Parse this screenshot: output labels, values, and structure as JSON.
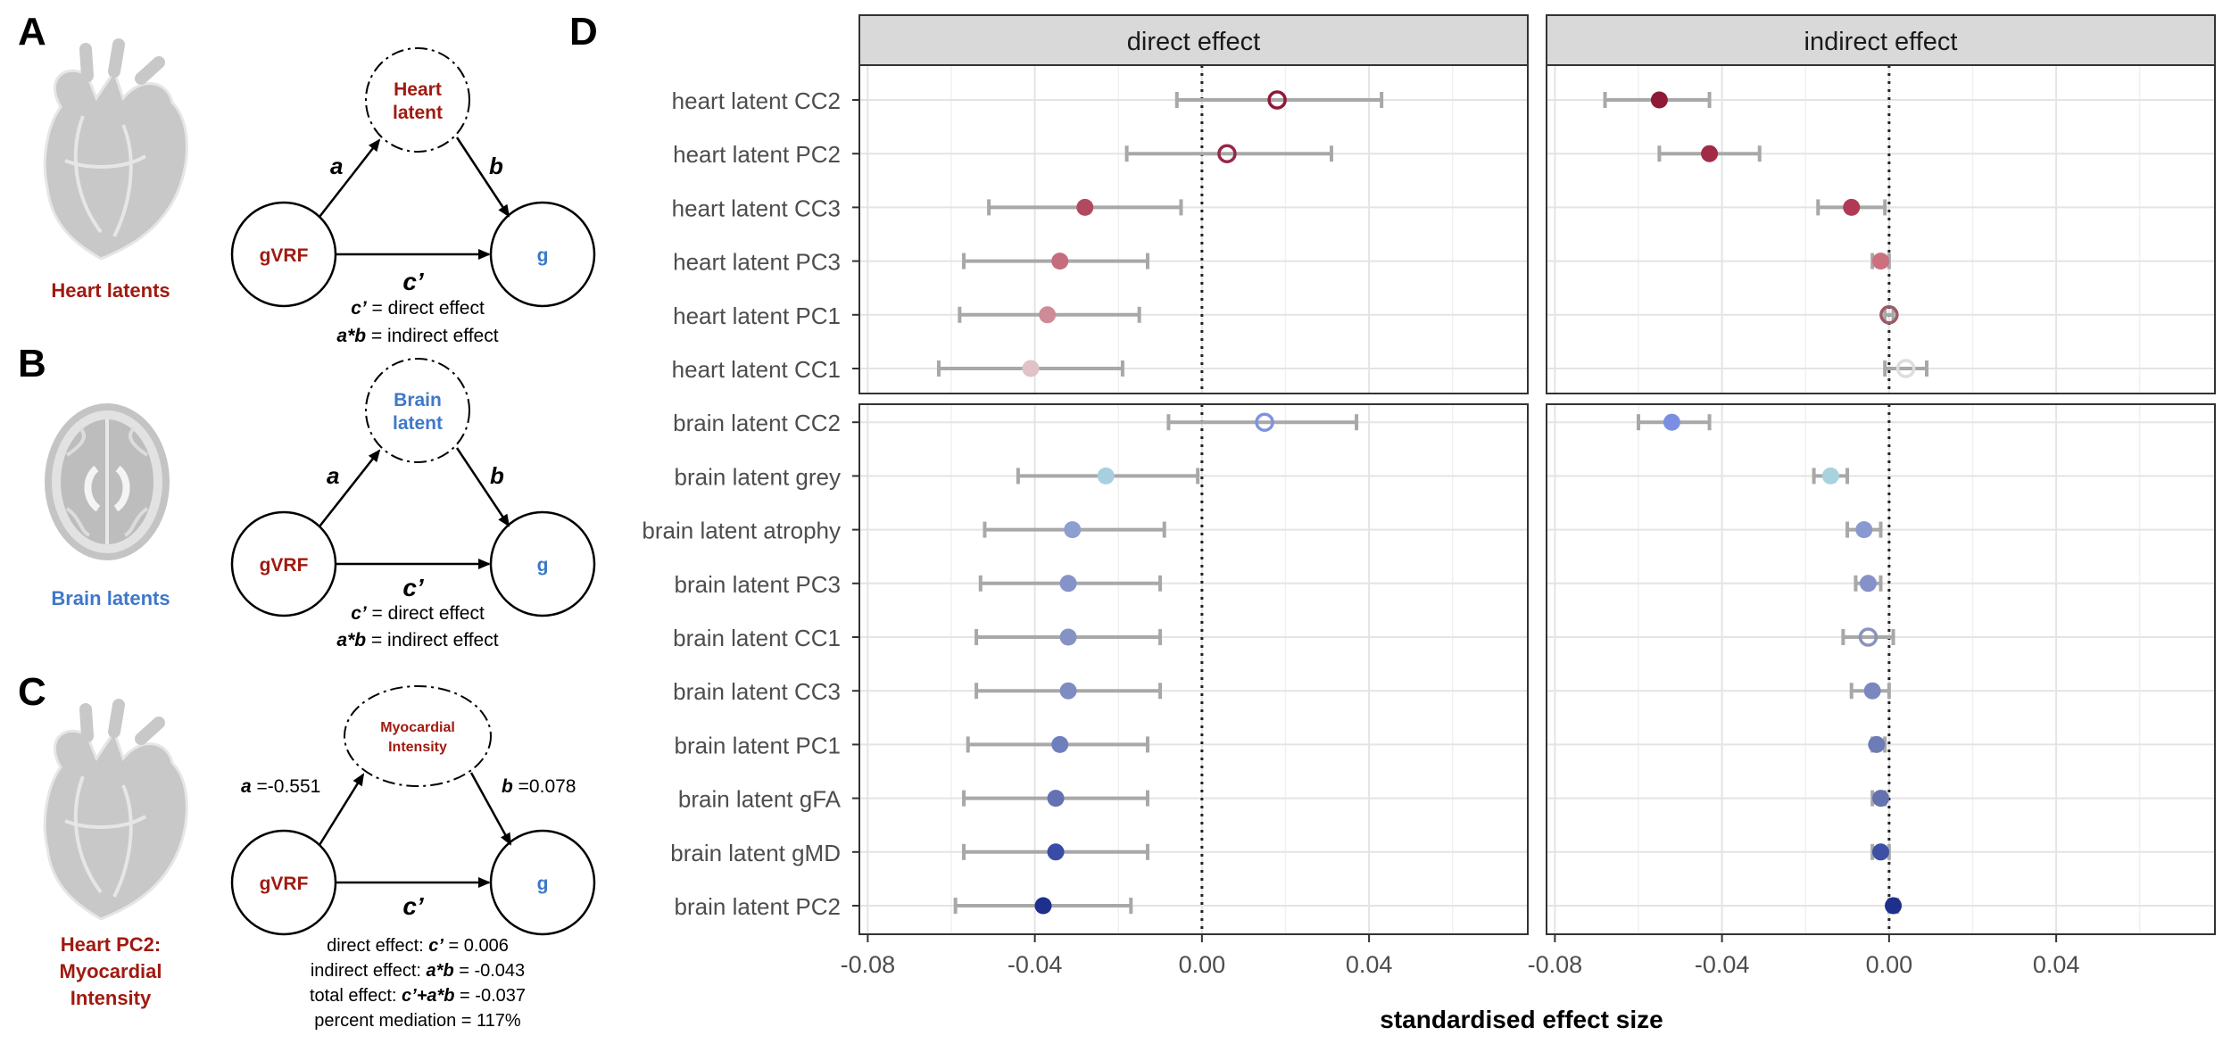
{
  "panels": {
    "A": {
      "letter": "A",
      "caption": "Heart latents",
      "mediator": [
        "Heart",
        "latent"
      ],
      "x_node": "gVRF",
      "y_node": "g",
      "path_a": "a",
      "path_b": "b",
      "path_c": "c’",
      "note1_sym": "c’",
      "note1_text": " = direct effect",
      "note2_sym": "a*b",
      "note2_text": " = indirect effect"
    },
    "B": {
      "letter": "B",
      "caption": "Brain latents",
      "mediator": [
        "Brain",
        "latent"
      ],
      "x_node": "gVRF",
      "y_node": "g",
      "path_a": "a",
      "path_b": "b",
      "path_c": "c’",
      "note1_sym": "c’",
      "note1_text": " = direct effect",
      "note2_sym": "a*b",
      "note2_text": " = indirect effect"
    },
    "C": {
      "letter": "C",
      "caption": [
        "Heart PC2:",
        "Myocardial",
        "Intensity"
      ],
      "mediator": [
        "Myocardial",
        "Intensity"
      ],
      "x_node": "gVRF",
      "y_node": "g",
      "path_a_sym": "a",
      "path_a_val": " =-0.551",
      "path_b_sym": "b",
      "path_b_val": " =0.078",
      "path_c": "c’",
      "lines": [
        {
          "pre": "direct effect: ",
          "sym": "c’",
          "post": " = 0.006"
        },
        {
          "pre": "indirect effect: ",
          "sym": "a*b",
          "post": " = -0.043"
        },
        {
          "pre": "total effect: ",
          "sym": "c’+a*b",
          "post": " = -0.037"
        },
        {
          "pre": "percent mediation = 117%",
          "sym": "",
          "post": ""
        }
      ]
    },
    "D": {
      "letter": "D"
    }
  },
  "colors": {
    "heart_text": "#a01a10",
    "brain_text": "#3f78c8",
    "node_blue": "#3a78c8",
    "strip_bg": "#d9d9d9",
    "errorbar": "#a8a8a8"
  },
  "chart_data": {
    "type": "scatter",
    "subtype": "dot-and-whisker forest plot",
    "facets": [
      "direct effect",
      "indirect effect"
    ],
    "xlabel": "standardised effect size",
    "xlim": [
      -0.082,
      0.078
    ],
    "xticks": [
      -0.08,
      -0.04,
      0.0,
      0.04
    ],
    "xtick_labels": [
      "-0.08",
      "-0.04",
      "0.00",
      "0.04"
    ],
    "reference_line": 0,
    "grid": true,
    "rows": [
      {
        "label": "heart latent CC2",
        "group": "heart",
        "direct": {
          "est": 0.018,
          "lo": -0.006,
          "hi": 0.043,
          "sig": false,
          "color": "#8e1a38"
        },
        "indirect": {
          "est": -0.055,
          "lo": -0.068,
          "hi": -0.043,
          "sig": true,
          "color": "#8e1a38"
        }
      },
      {
        "label": "heart latent PC2",
        "group": "heart",
        "direct": {
          "est": 0.006,
          "lo": -0.018,
          "hi": 0.031,
          "sig": false,
          "color": "#96284a"
        },
        "indirect": {
          "est": -0.043,
          "lo": -0.055,
          "hi": -0.031,
          "sig": true,
          "color": "#a32a45"
        }
      },
      {
        "label": "heart latent CC3",
        "group": "heart",
        "direct": {
          "est": -0.028,
          "lo": -0.051,
          "hi": -0.005,
          "sig": true,
          "color": "#b14a60"
        },
        "indirect": {
          "est": -0.009,
          "lo": -0.017,
          "hi": -0.001,
          "sig": true,
          "color": "#b03a55"
        }
      },
      {
        "label": "heart latent PC3",
        "group": "heart",
        "direct": {
          "est": -0.034,
          "lo": -0.057,
          "hi": -0.013,
          "sig": true,
          "color": "#c56c7e"
        },
        "indirect": {
          "est": -0.002,
          "lo": -0.004,
          "hi": 0.0,
          "sig": true,
          "color": "#cc7080"
        }
      },
      {
        "label": "heart latent PC1",
        "group": "heart",
        "direct": {
          "est": -0.037,
          "lo": -0.058,
          "hi": -0.015,
          "sig": true,
          "color": "#cf8a97"
        },
        "indirect": {
          "est": 0.0,
          "lo": -0.001,
          "hi": 0.001,
          "sig": false,
          "color": "#9e5a66"
        }
      },
      {
        "label": "heart latent CC1",
        "group": "heart",
        "direct": {
          "est": -0.041,
          "lo": -0.063,
          "hi": -0.019,
          "sig": true,
          "color": "#e0c2c8"
        },
        "indirect": {
          "est": 0.004,
          "lo": -0.001,
          "hi": 0.009,
          "sig": false,
          "color": "#dddddd"
        }
      },
      {
        "label": "brain latent CC2",
        "group": "brain",
        "direct": {
          "est": 0.015,
          "lo": -0.008,
          "hi": 0.037,
          "sig": false,
          "color": "#7f93e0"
        },
        "indirect": {
          "est": -0.052,
          "lo": -0.06,
          "hi": -0.043,
          "sig": true,
          "color": "#7b8fe2"
        }
      },
      {
        "label": "brain latent grey",
        "group": "brain",
        "direct": {
          "est": -0.023,
          "lo": -0.044,
          "hi": -0.001,
          "sig": true,
          "color": "#a8cfe0"
        },
        "indirect": {
          "est": -0.014,
          "lo": -0.018,
          "hi": -0.01,
          "sig": true,
          "color": "#a8d2de"
        }
      },
      {
        "label": "brain latent atrophy",
        "group": "brain",
        "direct": {
          "est": -0.031,
          "lo": -0.052,
          "hi": -0.009,
          "sig": true,
          "color": "#8e9ed0"
        },
        "indirect": {
          "est": -0.006,
          "lo": -0.01,
          "hi": -0.002,
          "sig": true,
          "color": "#8a9ad0"
        }
      },
      {
        "label": "brain latent PC3",
        "group": "brain",
        "direct": {
          "est": -0.032,
          "lo": -0.053,
          "hi": -0.01,
          "sig": true,
          "color": "#8593c8"
        },
        "indirect": {
          "est": -0.005,
          "lo": -0.008,
          "hi": -0.002,
          "sig": true,
          "color": "#8591c8"
        }
      },
      {
        "label": "brain latent CC1",
        "group": "brain",
        "direct": {
          "est": -0.032,
          "lo": -0.054,
          "hi": -0.01,
          "sig": true,
          "color": "#8592c4"
        },
        "indirect": {
          "est": -0.005,
          "lo": -0.011,
          "hi": 0.001,
          "sig": false,
          "color": "#8b93b8"
        }
      },
      {
        "label": "brain latent CC3",
        "group": "brain",
        "direct": {
          "est": -0.032,
          "lo": -0.054,
          "hi": -0.01,
          "sig": true,
          "color": "#7e8cc2"
        },
        "indirect": {
          "est": -0.004,
          "lo": -0.009,
          "hi": 0.0,
          "sig": true,
          "color": "#7b88be"
        }
      },
      {
        "label": "brain latent PC1",
        "group": "brain",
        "direct": {
          "est": -0.034,
          "lo": -0.056,
          "hi": -0.013,
          "sig": true,
          "color": "#6f7fbe"
        },
        "indirect": {
          "est": -0.003,
          "lo": -0.004,
          "hi": -0.001,
          "sig": true,
          "color": "#6d7cb6"
        }
      },
      {
        "label": "brain latent gFA",
        "group": "brain",
        "direct": {
          "est": -0.035,
          "lo": -0.057,
          "hi": -0.013,
          "sig": true,
          "color": "#6472b4"
        },
        "indirect": {
          "est": -0.002,
          "lo": -0.004,
          "hi": -0.001,
          "sig": true,
          "color": "#6473ae"
        }
      },
      {
        "label": "brain latent gMD",
        "group": "brain",
        "direct": {
          "est": -0.035,
          "lo": -0.057,
          "hi": -0.013,
          "sig": true,
          "color": "#3a4ca6"
        },
        "indirect": {
          "est": -0.002,
          "lo": -0.004,
          "hi": 0.0,
          "sig": true,
          "color": "#3e50a4"
        }
      },
      {
        "label": "brain latent PC2",
        "group": "brain",
        "direct": {
          "est": -0.038,
          "lo": -0.059,
          "hi": -0.017,
          "sig": true,
          "color": "#1e2f8c"
        },
        "indirect": {
          "est": 0.001,
          "lo": 0.0,
          "hi": 0.002,
          "sig": true,
          "color": "#1e2f8c"
        }
      }
    ]
  }
}
